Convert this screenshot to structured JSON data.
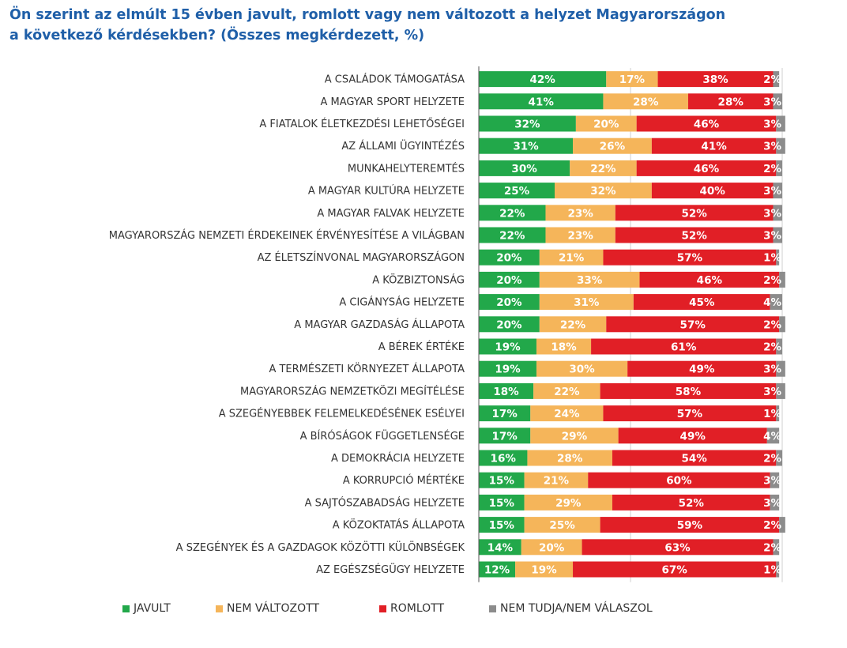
{
  "title_lines": [
    "Ön szerint az elmúlt 15 évben javult, romlott vagy nem változott a helyzet Magyarországon",
    "a következő kérdésekben? (Összes megkérdezett, %)"
  ],
  "colors": {
    "javult": "#22a84a",
    "nem_valtozott": "#f5b55a",
    "romlott": "#e11f26",
    "nem_tudja": "#8c8c8c",
    "title": "#1f5fa8"
  },
  "chart_data": {
    "type": "bar",
    "orientation": "horizontal",
    "stacked": true,
    "xlim": [
      0,
      100
    ],
    "categories": [
      "A CSALÁDOK TÁMOGATÁSA",
      "A MAGYAR SPORT HELYZETE",
      "A FIATALOK ÉLETKEZDÉSI LEHETŐSÉGEI",
      "AZ ÁLLAMI ÜGYINTÉZÉS",
      "MUNKAHELYTEREMTÉS",
      "A MAGYAR KULTÚRA HELYZETE",
      "A MAGYAR FALVAK HELYZETE",
      "MAGYARORSZÁG NEMZETI ÉRDEKEINEK ÉRVÉNYESÍTÉSE A VILÁGBAN",
      "AZ ÉLETSZÍNVONAL MAGYARORSZÁGON",
      "A KÖZBIZTONSÁG",
      "A CIGÁNYSÁG HELYZETE",
      "A MAGYAR GAZDASÁG ÁLLAPOTA",
      "A BÉREK ÉRTÉKE",
      "A TERMÉSZETI KÖRNYEZET ÁLLAPOTA",
      "MAGYARORSZÁG NEMZETKÖZI MEGÍTÉLÉSE",
      "A SZEGÉNYEBBEK FELEMELKEDÉSÉNEK ESÉLYEI",
      "A BÍRÓSÁGOK FÜGGETLENSÉGE",
      "A DEMOKRÁCIA HELYZETE",
      "A KORRUPCIÓ MÉRTÉKE",
      "A SAJTÓSZABADSÁG HELYZETE",
      "A KÖZOKTATÁS ÁLLAPOTA",
      "A SZEGÉNYEK ÉS A GAZDAGOK KÖZÖTTI KÜLÖNBSÉGEK",
      "AZ EGÉSZSÉGÜGY HELYZETE"
    ],
    "series": [
      {
        "name": "JAVULT",
        "color": "#22a84a",
        "values": [
          42,
          41,
          32,
          31,
          30,
          25,
          22,
          22,
          20,
          20,
          20,
          20,
          19,
          19,
          18,
          17,
          17,
          16,
          15,
          15,
          15,
          14,
          12
        ],
        "labels": [
          "42%",
          "41%",
          "32%",
          "31%",
          "30%",
          "25%",
          "22%",
          "22%",
          "20%",
          "20%",
          "20%",
          "20%",
          "19%",
          "19%",
          "18%",
          "17%",
          "17%",
          "16%",
          "15%",
          "15%",
          "15%",
          "14%",
          "12%"
        ]
      },
      {
        "name": "NEM VÁLTOZOTT",
        "color": "#f5b55a",
        "values": [
          17,
          28,
          20,
          26,
          22,
          32,
          23,
          23,
          21,
          33,
          31,
          22,
          18,
          30,
          22,
          24,
          29,
          28,
          21,
          29,
          25,
          20,
          19
        ],
        "labels": [
          "17%",
          "28%",
          "20%",
          "26%",
          "22%",
          "32%",
          "23%",
          "23%",
          "21%",
          "33%",
          "31%",
          "22%",
          "18%",
          "30%",
          "22%",
          "24%",
          "29%",
          "28%",
          "21%",
          "29%",
          "25%",
          "20%",
          "19%"
        ]
      },
      {
        "name": "ROMLOTT",
        "color": "#e11f26",
        "values": [
          38,
          28,
          46,
          41,
          46,
          40,
          52,
          52,
          57,
          46,
          45,
          57,
          61,
          49,
          58,
          57,
          49,
          54,
          60,
          52,
          59,
          63,
          67
        ],
        "labels": [
          "38%",
          "28%",
          "46%",
          "41%",
          "46%",
          "40%",
          "52%",
          "52%",
          "57%",
          "46%",
          "45%",
          "57%",
          "61%",
          "49%",
          "58%",
          "57%",
          "49%",
          "54%",
          "60%",
          "52%",
          "59%",
          "63%",
          "67%"
        ]
      },
      {
        "name": "NEM TUDJA/NEM VÁLASZOL",
        "color": "#8c8c8c",
        "values": [
          2,
          3,
          3,
          3,
          2,
          3,
          3,
          3,
          1,
          2,
          4,
          2,
          2,
          3,
          3,
          1,
          4,
          2,
          3,
          3,
          2,
          2,
          1
        ],
        "labels": [
          "2%",
          "3%",
          "3%",
          "3%",
          "2%",
          "3%",
          "3%",
          "3%",
          "1%",
          "2%",
          "4%",
          "2%",
          "2%",
          "3%",
          "3%",
          "1%",
          "4%",
          "2%",
          "3%",
          "3%",
          "2%",
          "2%",
          "1%"
        ]
      }
    ],
    "legend": [
      "JAVULT",
      "NEM VÁLTOZOTT",
      "ROMLOTT",
      "NEM TUDJA/NEM VÁLASZOL"
    ],
    "legend_position": "bottom",
    "grid": true
  }
}
